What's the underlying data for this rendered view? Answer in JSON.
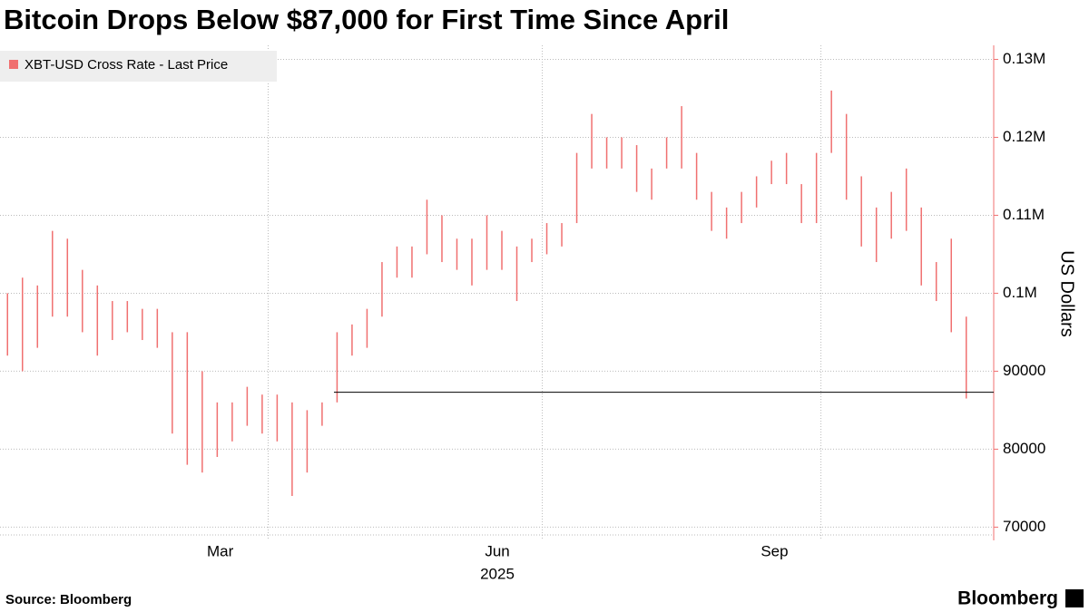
{
  "chart_data": {
    "type": "hilo",
    "title": "Bitcoin Drops Below $87,000 for First Time Since April",
    "source": "Source: Bloomberg",
    "brand": "Bloomberg",
    "y_label": "US Dollars",
    "x_year_label": "2025",
    "categories": [
      null,
      null,
      null,
      null,
      null,
      null,
      null,
      null,
      null,
      null,
      null,
      null,
      null,
      null,
      null,
      null,
      null,
      null,
      null,
      null,
      null,
      null,
      null,
      null,
      null,
      null,
      null,
      null,
      null,
      null,
      null,
      null,
      null,
      null,
      null,
      null,
      null,
      null,
      null,
      null,
      null,
      null,
      null,
      null,
      null,
      null,
      null,
      null,
      null,
      null,
      null,
      null,
      null,
      null,
      null,
      null,
      null,
      null,
      null,
      null,
      null,
      null,
      null,
      null,
      null
    ],
    "series": [
      {
        "name": "XBT-USD Cross Rate - Last Price",
        "color": "#f07070",
        "high": [
          100000,
          102000,
          101000,
          108000,
          107000,
          103000,
          101000,
          99000,
          99000,
          98000,
          98000,
          95000,
          95000,
          90000,
          86000,
          86000,
          88000,
          87000,
          87000,
          86000,
          85000,
          86000,
          95000,
          96000,
          98000,
          104000,
          106000,
          106000,
          112000,
          110000,
          107000,
          107000,
          110000,
          108000,
          106000,
          107000,
          109000,
          109000,
          118000,
          123000,
          120000,
          120000,
          119000,
          116000,
          120000,
          124000,
          118000,
          113000,
          111000,
          113000,
          115000,
          117000,
          118000,
          114000,
          118000,
          126000,
          123000,
          115000,
          111000,
          113000,
          116000,
          111000,
          104000,
          107000,
          97000
        ],
        "low": [
          92000,
          90000,
          93000,
          97000,
          97000,
          95000,
          92000,
          94000,
          95000,
          94000,
          93000,
          82000,
          78000,
          77000,
          79000,
          81000,
          83000,
          82000,
          81000,
          74000,
          77000,
          83000,
          86000,
          92000,
          93000,
          97000,
          102000,
          102000,
          105000,
          104000,
          103000,
          101000,
          103000,
          103000,
          99000,
          104000,
          105000,
          106000,
          109000,
          116000,
          116000,
          116000,
          113000,
          112000,
          116000,
          116000,
          112000,
          108000,
          107000,
          109000,
          111000,
          114000,
          114000,
          109000,
          109000,
          118000,
          112000,
          106000,
          104000,
          107000,
          108000,
          101000,
          99000,
          95000,
          86500
        ]
      }
    ],
    "reference_line": 87300,
    "ylim": [
      69000,
      131800
    ],
    "yticks": [
      70000,
      80000,
      90000,
      {
        "value": 100000,
        "label": "0.1M"
      },
      {
        "value": 110000,
        "label": "0.11M"
      },
      {
        "value": 120000,
        "label": "0.12M"
      },
      {
        "value": 130000,
        "label": "0.13M"
      }
    ],
    "xticks": [
      {
        "value": 14.2,
        "label": "Mar"
      },
      {
        "value": 32.7,
        "label": "Jun"
      },
      {
        "value": 51.2,
        "label": "Sep"
      }
    ],
    "xgrid": [
      17.4,
      35.7,
      54.3
    ],
    "grid": true,
    "legend": "top-left"
  }
}
